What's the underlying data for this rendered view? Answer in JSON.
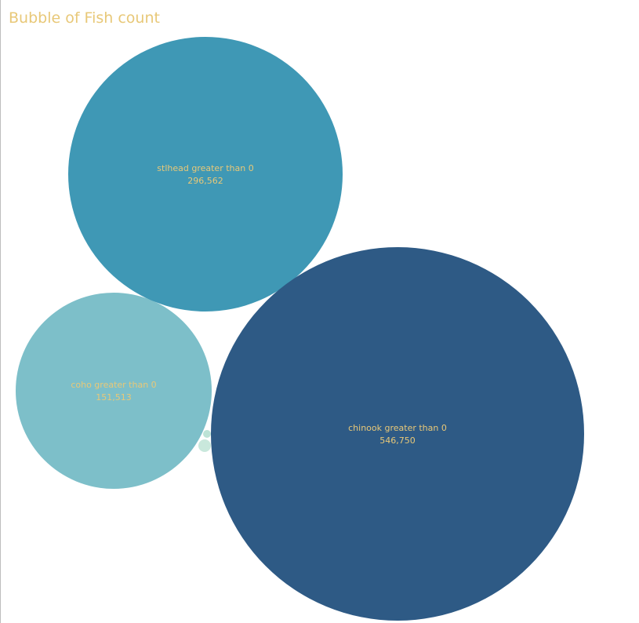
{
  "chart_data": {
    "type": "bubble",
    "title": "Bubble of Fish count",
    "bubbles": [
      {
        "label": "stlhead greater than 0",
        "value_text": "296,562",
        "value": 296562,
        "color": "#3f98b5",
        "show_label": true
      },
      {
        "label": "coho greater than 0",
        "value_text": "151,513",
        "value": 151513,
        "color": "#7dbfc9",
        "show_label": true
      },
      {
        "label": "chinook greater than 0",
        "value_text": "546,750",
        "value": 546750,
        "color": "#2e5a85",
        "show_label": true
      },
      {
        "label": "",
        "value_text": "",
        "value": 0,
        "color": "#bde3d6",
        "show_label": false
      },
      {
        "label": "",
        "value_text": "",
        "value": 0,
        "color": "#c9e8dc",
        "show_label": false
      }
    ],
    "colors": {
      "title": "#e8c878",
      "label": "#e8c878"
    }
  }
}
